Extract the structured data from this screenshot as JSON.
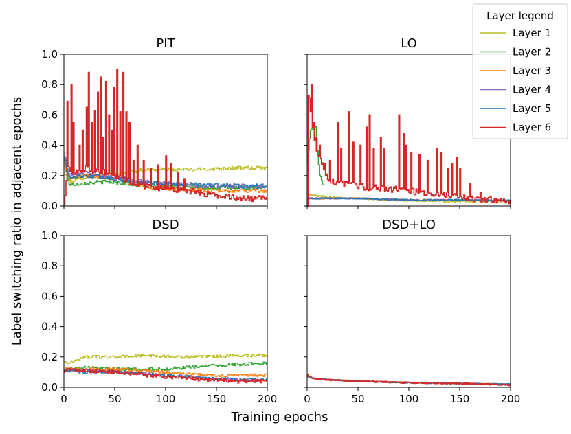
{
  "figure": {
    "ylabel": "Label switching ratio in adjacent epochs",
    "xlabel": "Training epochs"
  },
  "legend": {
    "title": "Layer legend",
    "entries": [
      {
        "label": "Layer 1",
        "color": "#bcbd22"
      },
      {
        "label": "Layer 2",
        "color": "#2ca02c"
      },
      {
        "label": "Layer 3",
        "color": "#ff7f0e"
      },
      {
        "label": "Layer 4",
        "color": "#9467bd"
      },
      {
        "label": "Layer 5",
        "color": "#1f77b4"
      },
      {
        "label": "Layer 6",
        "color": "#d62728"
      }
    ]
  },
  "chart_data": [
    {
      "type": "line",
      "title": "PIT",
      "xlim": [
        0,
        200
      ],
      "ylim": [
        0,
        1
      ],
      "x_ticks": [
        0,
        50,
        100,
        150,
        200
      ],
      "y_ticks": [
        "0.0",
        "0.2",
        "0.4",
        "0.6",
        "0.8",
        "1.0"
      ],
      "x_tick_labels_visible": false,
      "y_tick_labels_visible": true,
      "series": [
        {
          "name": "Layer 1",
          "color": "#bcbd22",
          "noise": 0.012,
          "x": [
            0,
            5,
            20,
            40,
            60,
            80,
            100,
            130,
            160,
            200
          ],
          "y": [
            0.22,
            0.16,
            0.19,
            0.2,
            0.22,
            0.24,
            0.24,
            0.24,
            0.25,
            0.25
          ]
        },
        {
          "name": "Layer 2",
          "color": "#2ca02c",
          "noise": 0.012,
          "x": [
            0,
            5,
            20,
            40,
            60,
            80,
            100,
            120,
            140,
            170,
            200
          ],
          "y": [
            0.3,
            0.14,
            0.15,
            0.16,
            0.15,
            0.13,
            0.13,
            0.13,
            0.12,
            0.12,
            0.12
          ]
        },
        {
          "name": "Layer 3",
          "color": "#ff7f0e",
          "noise": 0.012,
          "x": [
            0,
            5,
            20,
            40,
            60,
            80,
            100,
            120,
            140,
            170,
            200
          ],
          "y": [
            0.28,
            0.18,
            0.2,
            0.19,
            0.16,
            0.13,
            0.11,
            0.11,
            0.1,
            0.1,
            0.1
          ]
        },
        {
          "name": "Layer 4",
          "color": "#9467bd",
          "noise": 0.015,
          "x": [
            0,
            5,
            20,
            40,
            60,
            80,
            100,
            120,
            140,
            170,
            200
          ],
          "y": [
            0.35,
            0.2,
            0.22,
            0.2,
            0.18,
            0.16,
            0.15,
            0.14,
            0.13,
            0.13,
            0.13
          ]
        },
        {
          "name": "Layer 5",
          "color": "#1f77b4",
          "noise": 0.015,
          "x": [
            0,
            5,
            20,
            40,
            60,
            80,
            100,
            120,
            140,
            170,
            200
          ],
          "y": [
            0.32,
            0.19,
            0.2,
            0.19,
            0.17,
            0.15,
            0.15,
            0.14,
            0.14,
            0.13,
            0.13
          ]
        },
        {
          "name": "Layer 6",
          "color": "#d62728",
          "noise": 0.02,
          "x": [
            0,
            3,
            10,
            20,
            30,
            40,
            50,
            60,
            70,
            80,
            90,
            100,
            110,
            120,
            130,
            140,
            160,
            180,
            200
          ],
          "y": [
            0.0,
            0.25,
            0.22,
            0.25,
            0.23,
            0.22,
            0.2,
            0.17,
            0.15,
            0.13,
            0.12,
            0.12,
            0.11,
            0.1,
            0.09,
            0.08,
            0.06,
            0.05,
            0.05
          ],
          "spikes": [
            [
              3,
              0.69
            ],
            [
              7,
              0.8
            ],
            [
              9,
              0.55
            ],
            [
              15,
              0.4
            ],
            [
              18,
              0.5
            ],
            [
              22,
              0.65
            ],
            [
              24,
              0.88
            ],
            [
              27,
              0.55
            ],
            [
              30,
              0.63
            ],
            [
              33,
              0.75
            ],
            [
              36,
              0.85
            ],
            [
              38,
              0.45
            ],
            [
              41,
              0.82
            ],
            [
              44,
              0.6
            ],
            [
              47,
              0.5
            ],
            [
              49,
              0.78
            ],
            [
              52,
              0.9
            ],
            [
              55,
              0.62
            ],
            [
              58,
              0.88
            ],
            [
              61,
              0.62
            ],
            [
              64,
              0.55
            ],
            [
              68,
              0.3
            ],
            [
              72,
              0.4
            ],
            [
              78,
              0.3
            ],
            [
              85,
              0.25
            ],
            [
              92,
              0.27
            ],
            [
              100,
              0.33
            ],
            [
              105,
              0.28
            ],
            [
              112,
              0.22
            ],
            [
              118,
              0.18
            ]
          ]
        }
      ]
    },
    {
      "type": "line",
      "title": "LO",
      "xlim": [
        0,
        200
      ],
      "ylim": [
        0,
        1
      ],
      "x_ticks": [
        0,
        50,
        100,
        150,
        200
      ],
      "y_ticks": [
        "0.0",
        "0.2",
        "0.4",
        "0.6",
        "0.8",
        "1.0"
      ],
      "x_tick_labels_visible": false,
      "y_tick_labels_visible": false,
      "series": [
        {
          "name": "Layer 1",
          "color": "#bcbd22",
          "noise": 0.006,
          "x": [
            0,
            5,
            20,
            50,
            80,
            110,
            140,
            170,
            200
          ],
          "y": [
            0.08,
            0.07,
            0.06,
            0.05,
            0.04,
            0.035,
            0.03,
            0.03,
            0.03
          ]
        },
        {
          "name": "Layer 2",
          "color": "#2ca02c",
          "noise": 0.01,
          "x": [
            0,
            3,
            8,
            12,
            15
          ],
          "y": [
            0.3,
            0.5,
            0.52,
            0.2,
            0.15
          ]
        },
        {
          "name": "Layer 3",
          "color": "#ff7f0e",
          "noise": 0.005,
          "x": [
            0,
            50,
            100,
            150,
            200
          ],
          "y": [
            0.05,
            0.05,
            0.04,
            0.04,
            0.035
          ]
        },
        {
          "name": "Layer 4",
          "color": "#9467bd",
          "noise": 0.005,
          "x": [
            0,
            50,
            100,
            150,
            200
          ],
          "y": [
            0.05,
            0.05,
            0.04,
            0.04,
            0.035
          ]
        },
        {
          "name": "Layer 5",
          "color": "#1f77b4",
          "noise": 0.005,
          "x": [
            0,
            50,
            100,
            150,
            200
          ],
          "y": [
            0.05,
            0.05,
            0.04,
            0.04,
            0.035
          ]
        },
        {
          "name": "Layer 6",
          "color": "#d62728",
          "noise": 0.02,
          "x": [
            0,
            2,
            5,
            10,
            20,
            30,
            40,
            50,
            60,
            70,
            80,
            90,
            100,
            110,
            120,
            130,
            140,
            150,
            160,
            170,
            180,
            190,
            200
          ],
          "y": [
            0.0,
            0.7,
            0.5,
            0.35,
            0.18,
            0.15,
            0.14,
            0.13,
            0.12,
            0.12,
            0.11,
            0.11,
            0.1,
            0.09,
            0.08,
            0.08,
            0.07,
            0.06,
            0.05,
            0.04,
            0.04,
            0.03,
            0.03
          ],
          "spikes": [
            [
              1,
              0.73
            ],
            [
              4,
              0.8
            ],
            [
              6,
              0.55
            ],
            [
              8,
              0.45
            ],
            [
              12,
              0.4
            ],
            [
              17,
              0.28
            ],
            [
              22,
              0.3
            ],
            [
              30,
              0.55
            ],
            [
              33,
              0.38
            ],
            [
              41,
              0.62
            ],
            [
              45,
              0.42
            ],
            [
              52,
              0.4
            ],
            [
              58,
              0.52
            ],
            [
              61,
              0.6
            ],
            [
              65,
              0.38
            ],
            [
              72,
              0.45
            ],
            [
              75,
              0.38
            ],
            [
              90,
              0.6
            ],
            [
              95,
              0.48
            ],
            [
              97,
              0.4
            ],
            [
              102,
              0.35
            ],
            [
              110,
              0.34
            ],
            [
              118,
              0.3
            ],
            [
              127,
              0.38
            ],
            [
              131,
              0.35
            ],
            [
              138,
              0.25
            ],
            [
              142,
              0.28
            ],
            [
              147,
              0.32
            ],
            [
              150,
              0.25
            ],
            [
              160,
              0.15
            ],
            [
              170,
              0.09
            ],
            [
              180,
              0.06
            ],
            [
              190,
              0.05
            ]
          ]
        }
      ]
    },
    {
      "type": "line",
      "title": "DSD",
      "xlim": [
        0,
        200
      ],
      "ylim": [
        0,
        1
      ],
      "x_ticks": [
        0,
        50,
        100,
        150,
        200
      ],
      "y_ticks": [
        "0.0",
        "0.2",
        "0.4",
        "0.6",
        "0.8",
        "1.0"
      ],
      "x_tick_labels_visible": true,
      "y_tick_labels_visible": true,
      "series": [
        {
          "name": "Layer 1",
          "color": "#bcbd22",
          "noise": 0.01,
          "x": [
            0,
            5,
            20,
            50,
            80,
            110,
            140,
            170,
            200
          ],
          "y": [
            0.17,
            0.16,
            0.2,
            0.2,
            0.21,
            0.2,
            0.2,
            0.21,
            0.21
          ]
        },
        {
          "name": "Layer 2",
          "color": "#2ca02c",
          "noise": 0.01,
          "x": [
            0,
            5,
            20,
            50,
            80,
            100,
            120,
            140,
            170,
            200
          ],
          "y": [
            0.12,
            0.12,
            0.13,
            0.12,
            0.12,
            0.12,
            0.13,
            0.14,
            0.15,
            0.16
          ]
        },
        {
          "name": "Layer 3",
          "color": "#ff7f0e",
          "noise": 0.01,
          "x": [
            0,
            5,
            20,
            50,
            80,
            100,
            120,
            140,
            170,
            200
          ],
          "y": [
            0.12,
            0.12,
            0.12,
            0.12,
            0.11,
            0.1,
            0.09,
            0.08,
            0.08,
            0.08
          ]
        },
        {
          "name": "Layer 4",
          "color": "#9467bd",
          "noise": 0.01,
          "x": [
            0,
            5,
            20,
            50,
            80,
            100,
            120,
            140,
            170,
            200
          ],
          "y": [
            0.11,
            0.11,
            0.11,
            0.1,
            0.09,
            0.08,
            0.07,
            0.06,
            0.05,
            0.05
          ]
        },
        {
          "name": "Layer 5",
          "color": "#1f77b4",
          "noise": 0.01,
          "x": [
            0,
            5,
            20,
            50,
            80,
            100,
            120,
            140,
            170,
            200
          ],
          "y": [
            0.11,
            0.11,
            0.1,
            0.1,
            0.09,
            0.08,
            0.07,
            0.06,
            0.05,
            0.05
          ]
        },
        {
          "name": "Layer 6",
          "color": "#d62728",
          "noise": 0.012,
          "x": [
            0,
            5,
            20,
            50,
            80,
            100,
            120,
            140,
            170,
            200
          ],
          "y": [
            0.1,
            0.12,
            0.11,
            0.1,
            0.08,
            0.07,
            0.06,
            0.05,
            0.04,
            0.04
          ]
        }
      ]
    },
    {
      "type": "line",
      "title": "DSD+LO",
      "xlim": [
        0,
        200
      ],
      "ylim": [
        0,
        1
      ],
      "x_ticks": [
        0,
        50,
        100,
        150,
        200
      ],
      "y_ticks": [
        "0.0",
        "0.2",
        "0.4",
        "0.6",
        "0.8",
        "1.0"
      ],
      "x_tick_labels_visible": true,
      "y_tick_labels_visible": false,
      "series": [
        {
          "name": "Layer 1",
          "color": "#bcbd22",
          "noise": 0.004,
          "x": [
            0,
            5,
            20,
            50,
            100,
            150,
            200
          ],
          "y": [
            0.08,
            0.06,
            0.05,
            0.04,
            0.03,
            0.025,
            0.02
          ]
        },
        {
          "name": "Layer 2",
          "color": "#2ca02c",
          "noise": 0.004,
          "x": [
            0,
            5,
            20,
            50,
            100,
            150,
            200
          ],
          "y": [
            0.07,
            0.06,
            0.05,
            0.04,
            0.03,
            0.025,
            0.02
          ]
        },
        {
          "name": "Layer 3",
          "color": "#ff7f0e",
          "noise": 0.004,
          "x": [
            0,
            5,
            20,
            50,
            100,
            150,
            200
          ],
          "y": [
            0.07,
            0.06,
            0.05,
            0.04,
            0.03,
            0.025,
            0.02
          ]
        },
        {
          "name": "Layer 4",
          "color": "#9467bd",
          "noise": 0.004,
          "x": [
            0,
            5,
            20,
            50,
            100,
            150,
            200
          ],
          "y": [
            0.07,
            0.06,
            0.05,
            0.04,
            0.03,
            0.025,
            0.02
          ]
        },
        {
          "name": "Layer 5",
          "color": "#1f77b4",
          "noise": 0.004,
          "x": [
            0,
            5,
            20,
            50,
            100,
            150,
            200
          ],
          "y": [
            0.07,
            0.06,
            0.05,
            0.04,
            0.03,
            0.025,
            0.02
          ]
        },
        {
          "name": "Layer 6",
          "color": "#d62728",
          "noise": 0.005,
          "x": [
            0,
            5,
            20,
            50,
            100,
            150,
            200
          ],
          "y": [
            0.08,
            0.06,
            0.05,
            0.04,
            0.03,
            0.025,
            0.015
          ]
        }
      ]
    }
  ]
}
